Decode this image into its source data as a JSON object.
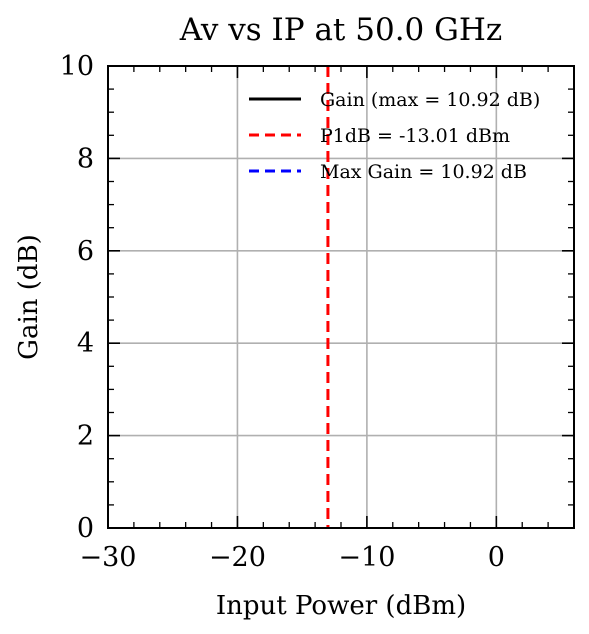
{
  "chart_data": {
    "type": "line",
    "title": "Av vs IP at 50.0 GHz",
    "xlabel": "Input Power (dBm)",
    "ylabel": "Gain (dB)",
    "xlim": [
      -30,
      6
    ],
    "ylim": [
      0,
      10
    ],
    "xticks": [
      -30,
      -20,
      -10,
      0
    ],
    "xtick_labels": [
      "−30",
      "−20",
      "−10",
      "0"
    ],
    "yticks": [
      0,
      2,
      4,
      6,
      8,
      10
    ],
    "ytick_labels": [
      "0",
      "2",
      "4",
      "6",
      "8",
      "10"
    ],
    "grid": true,
    "legend_position": "top-right",
    "series": [
      {
        "name": "Gain (max = 10.92 dB)",
        "color": "#000000",
        "style": "solid",
        "x": [],
        "y": []
      }
    ],
    "vlines": [
      {
        "name": "P1dB = -13.01 dBm",
        "x": -13.01,
        "color": "#ff0000",
        "style": "dashed"
      }
    ],
    "hlines": [
      {
        "name": "Max Gain = 10.92 dB",
        "y": 10.92,
        "color": "#0000ff",
        "style": "dashed"
      }
    ]
  }
}
